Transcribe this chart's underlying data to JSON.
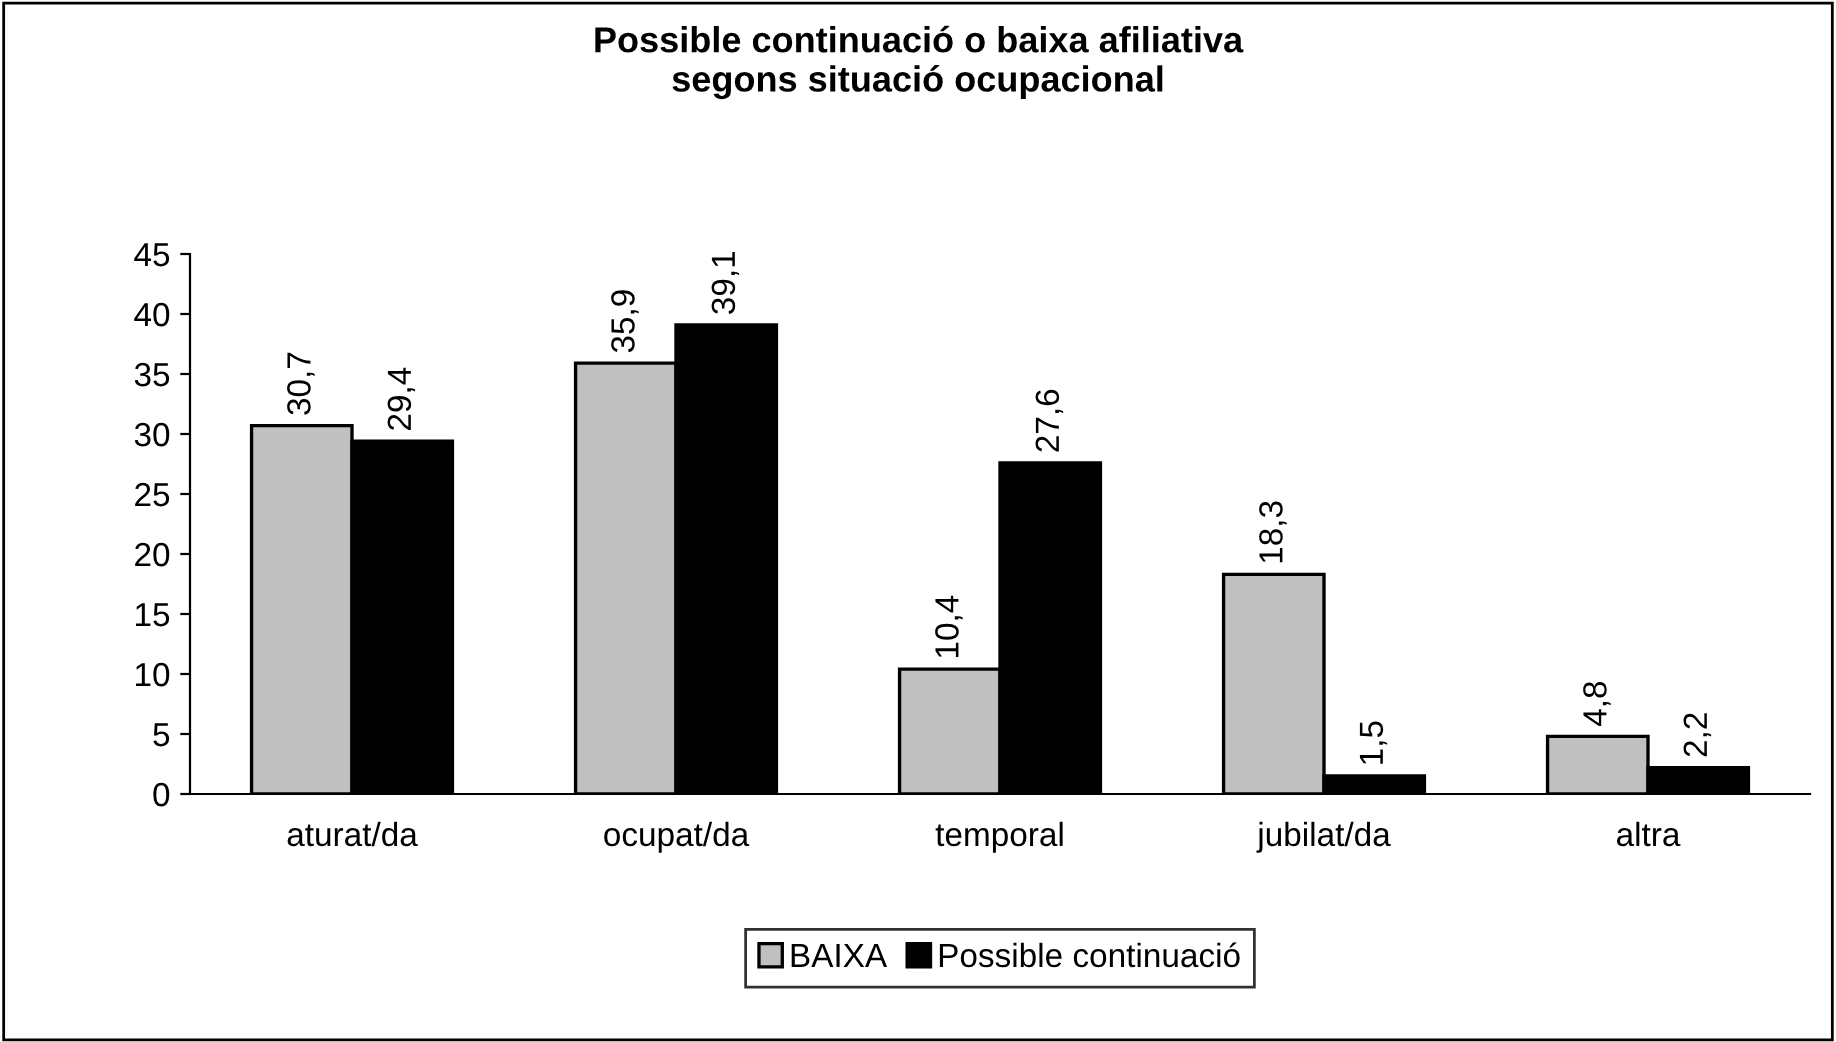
{
  "chart_data": {
    "type": "bar",
    "title": "Possible continuació o baixa afiliativa\nsegons situació ocupacional",
    "categories": [
      "aturat/da",
      "ocupat/da",
      "temporal",
      "jubilat/da",
      "altra"
    ],
    "series": [
      {
        "name": "BAIXA",
        "color": "#c0c0c0",
        "values": [
          30.7,
          35.9,
          10.4,
          18.3,
          4.8
        ],
        "value_labels": [
          "30,7",
          "35,9",
          "10,4",
          "18,3",
          "4,8"
        ]
      },
      {
        "name": "Possible continuació",
        "color": "#000000",
        "values": [
          29.4,
          39.1,
          27.6,
          1.5,
          2.2
        ],
        "value_labels": [
          "29,4",
          "39,1",
          "27,6",
          "1,5",
          "2,2"
        ]
      }
    ],
    "ylim": [
      0,
      45
    ],
    "yticks": [
      0,
      5,
      10,
      15,
      20,
      25,
      30,
      35,
      40,
      45
    ],
    "grid": false,
    "legend": "bottom"
  }
}
